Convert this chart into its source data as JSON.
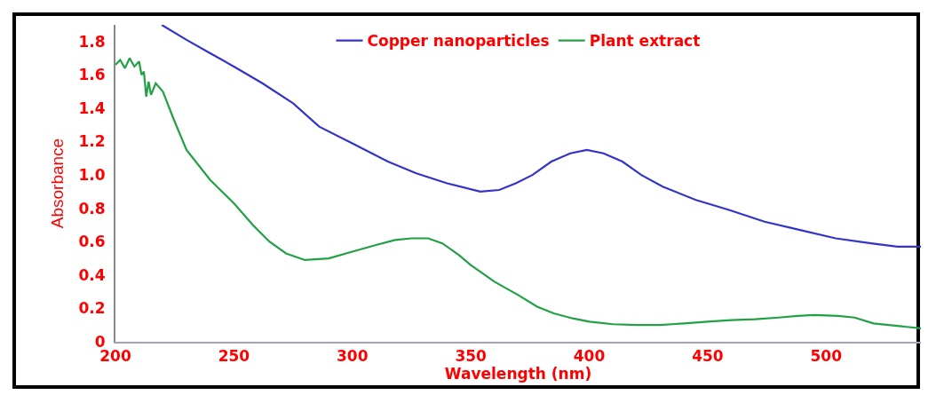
{
  "chart_data": {
    "type": "line",
    "xlabel": "Wavelength (nm)",
    "ylabel": "Absorbance",
    "xlim": [
      200,
      540
    ],
    "ylim": [
      0,
      1.9
    ],
    "xticks": [
      200,
      250,
      300,
      350,
      400,
      450,
      500
    ],
    "yticks": [
      0,
      0.2,
      0.4,
      0.6,
      0.8,
      {
        "value": 1,
        "label": "1.0"
      },
      1.2,
      1.4,
      1.6,
      1.8
    ],
    "grid": false,
    "legend": "top",
    "marker": "none",
    "line_style": "solid",
    "series": [
      {
        "name": "Copper nanoparticles",
        "color": "#3333cc",
        "x": [
          219.5,
          230,
          240,
          250,
          262,
          275,
          286,
          300,
          315,
          327,
          340,
          354,
          362,
          369,
          376,
          384,
          392,
          399,
          406,
          414,
          422,
          431,
          445,
          459,
          474,
          489,
          504,
          519,
          530,
          540
        ],
        "values": [
          1.9,
          1.81,
          1.73,
          1.65,
          1.55,
          1.43,
          1.29,
          1.19,
          1.08,
          1.01,
          0.95,
          0.9,
          0.91,
          0.95,
          1.0,
          1.08,
          1.13,
          1.15,
          1.13,
          1.08,
          1.0,
          0.93,
          0.85,
          0.79,
          0.72,
          0.67,
          0.62,
          0.59,
          0.57,
          0.57
        ]
      },
      {
        "name": "Plant extract",
        "color": "#22a045",
        "x": [
          200,
          202,
          204,
          206,
          208,
          210,
          211,
          212,
          213,
          214,
          215,
          217,
          220,
          225,
          230,
          240,
          250,
          258,
          265,
          272,
          280,
          290,
          300,
          310,
          318,
          325,
          332,
          338,
          345,
          350,
          360,
          370,
          378,
          385,
          393,
          400,
          410,
          420,
          430,
          440,
          450,
          460,
          470,
          480,
          488,
          495,
          505,
          512,
          520,
          530,
          540
        ],
        "values": [
          1.66,
          1.69,
          1.64,
          1.7,
          1.65,
          1.68,
          1.6,
          1.62,
          1.47,
          1.56,
          1.48,
          1.55,
          1.5,
          1.32,
          1.15,
          0.97,
          0.83,
          0.7,
          0.6,
          0.53,
          0.49,
          0.5,
          0.54,
          0.58,
          0.61,
          0.62,
          0.62,
          0.59,
          0.52,
          0.46,
          0.36,
          0.28,
          0.21,
          0.17,
          0.14,
          0.12,
          0.105,
          0.1,
          0.1,
          0.11,
          0.12,
          0.13,
          0.135,
          0.145,
          0.155,
          0.16,
          0.155,
          0.145,
          0.11,
          0.095,
          0.08
        ]
      }
    ]
  }
}
